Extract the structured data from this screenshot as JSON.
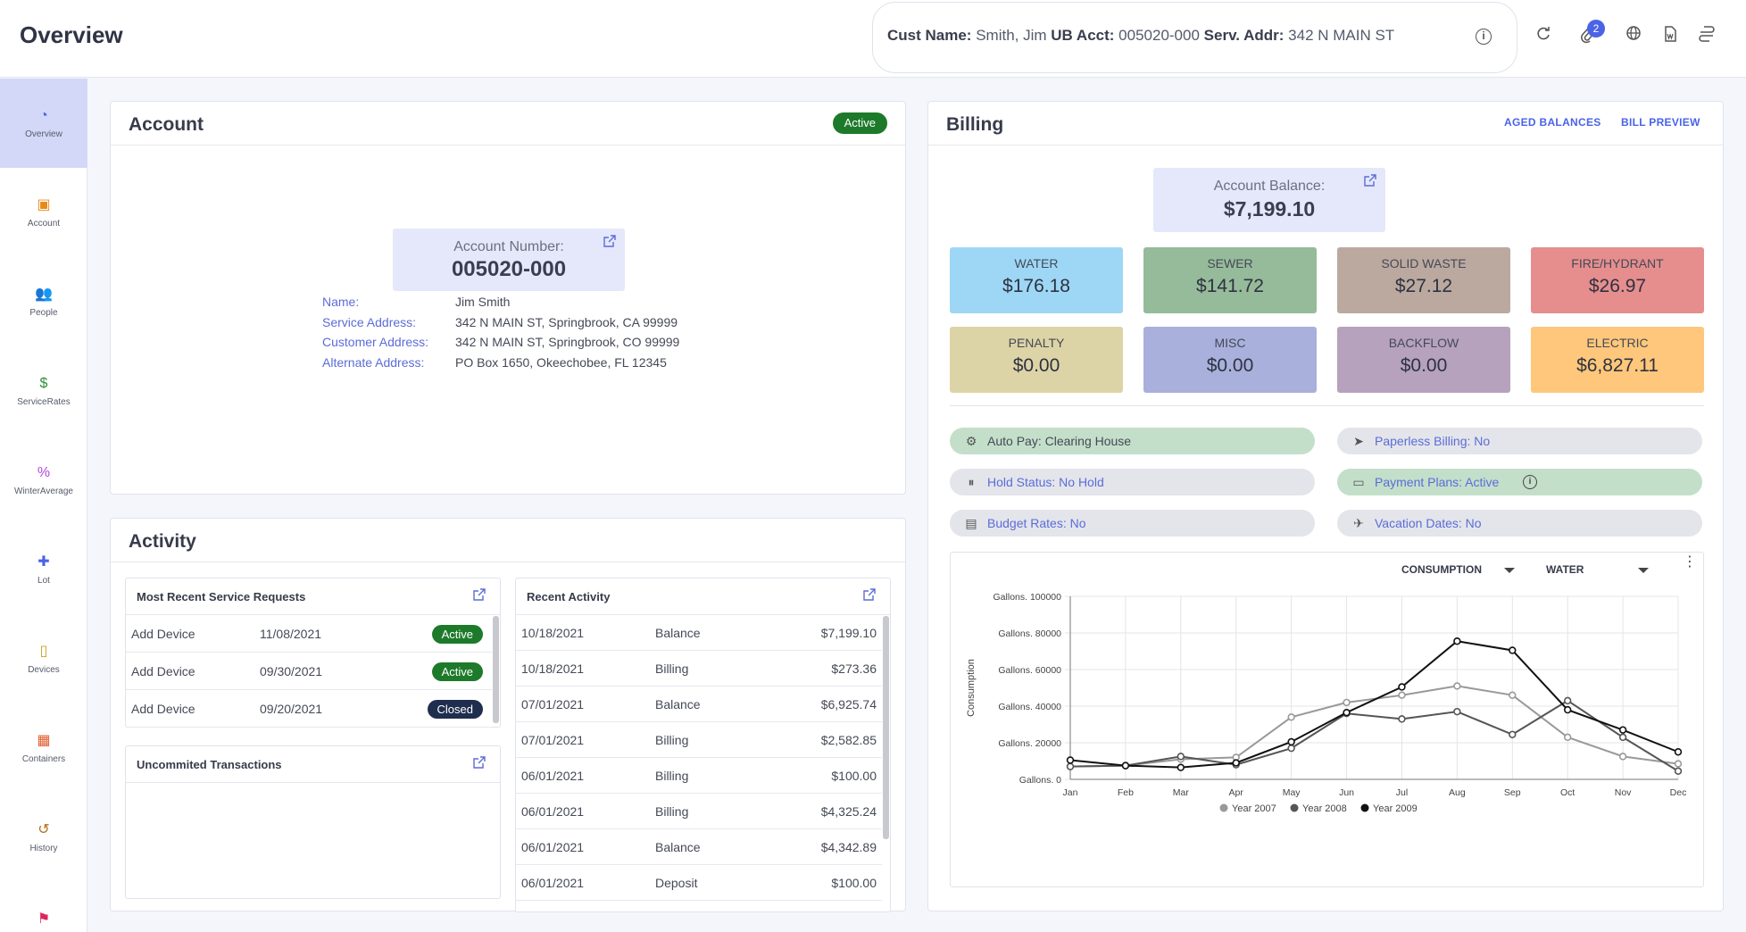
{
  "header": {
    "title": "Overview",
    "customer": {
      "name_label": "Cust Name:",
      "name": "Smith, Jim",
      "acct_label": "UB Acct:",
      "acct": "005020-000",
      "addr_label": "Serv. Addr:",
      "addr": "342 N MAIN ST"
    },
    "attachments_badge": "2",
    "icons": [
      "refresh-icon",
      "paperclip-icon",
      "globe-icon",
      "document-icon",
      "exchange-icon"
    ]
  },
  "sidebar": {
    "items": [
      {
        "label": "Overview",
        "icon": "pie-chart-icon",
        "color": "#4a63e7",
        "active": true
      },
      {
        "label": "Account",
        "icon": "account-icon",
        "color": "#e8891a",
        "active": false
      },
      {
        "label": "People",
        "icon": "people-icon",
        "color": "#2a8fd4",
        "active": false
      },
      {
        "label": "ServiceRates",
        "icon": "dollar-icon",
        "color": "#2e8b3a",
        "active": false
      },
      {
        "label": "WinterAverage",
        "icon": "percent-icon",
        "color": "#b04ad8",
        "active": false
      },
      {
        "label": "Lot",
        "icon": "puzzle-icon",
        "color": "#4a63e7",
        "active": false
      },
      {
        "label": "Devices",
        "icon": "device-icon",
        "color": "#c9a21a",
        "active": false
      },
      {
        "label": "Containers",
        "icon": "calendar-icon",
        "color": "#e05a2a",
        "active": false
      },
      {
        "label": "History",
        "icon": "history-icon",
        "color": "#b6711e",
        "active": false
      },
      {
        "label": "",
        "icon": "flag-icon",
        "color": "#e0245e",
        "active": false
      }
    ]
  },
  "account": {
    "title": "Account",
    "status": "Active",
    "number_label": "Account Number:",
    "number": "005020-000",
    "fields": [
      {
        "label": "Name:",
        "value": "Jim Smith"
      },
      {
        "label": "Service Address:",
        "value": "342 N MAIN ST, Springbrook, CA 99999"
      },
      {
        "label": "Customer Address:",
        "value": "342 N MAIN ST, Springbrook, CO 99999"
      },
      {
        "label": "Alternate Address:",
        "value": "PO Box 1650, Okeechobee, FL 12345"
      }
    ]
  },
  "activity": {
    "title": "Activity",
    "service_requests": {
      "title": "Most Recent Service Requests",
      "rows": [
        {
          "type": "Add Device",
          "date": "11/08/2021",
          "status": "Active",
          "color": "#1d7a2a"
        },
        {
          "type": "Add Device",
          "date": "09/30/2021",
          "status": "Active",
          "color": "#1d7a2a"
        },
        {
          "type": "Add Device",
          "date": "09/20/2021",
          "status": "Closed",
          "color": "#1f2d4e"
        }
      ]
    },
    "uncommitted": {
      "title": "Uncommited Transactions"
    },
    "recent": {
      "title": "Recent Activity",
      "rows": [
        {
          "date": "10/18/2021",
          "type": "Balance",
          "amount": "$7,199.10"
        },
        {
          "date": "10/18/2021",
          "type": "Billing",
          "amount": "$273.36"
        },
        {
          "date": "07/01/2021",
          "type": "Balance",
          "amount": "$6,925.74"
        },
        {
          "date": "07/01/2021",
          "type": "Billing",
          "amount": "$2,582.85"
        },
        {
          "date": "06/01/2021",
          "type": "Billing",
          "amount": "$100.00"
        },
        {
          "date": "06/01/2021",
          "type": "Billing",
          "amount": "$4,325.24"
        },
        {
          "date": "06/01/2021",
          "type": "Balance",
          "amount": "$4,342.89"
        },
        {
          "date": "06/01/2021",
          "type": "Deposit",
          "amount": "$100.00"
        }
      ]
    }
  },
  "billing": {
    "title": "Billing",
    "links": {
      "aged": "AGED BALANCES",
      "preview": "BILL PREVIEW"
    },
    "balance_label": "Account Balance:",
    "balance": "$7,199.10",
    "tiles": [
      {
        "label": "WATER",
        "value": "$176.18",
        "color": "#9dd7f5"
      },
      {
        "label": "SEWER",
        "value": "$141.72",
        "color": "#96bb9a"
      },
      {
        "label": "SOLID WASTE",
        "value": "$27.12",
        "color": "#bba9a0"
      },
      {
        "label": "FIRE/HYDRANT",
        "value": "$26.97",
        "color": "#e68e8e"
      },
      {
        "label": "PENALTY",
        "value": "$0.00",
        "color": "#dcd4a6"
      },
      {
        "label": "MISC",
        "value": "$0.00",
        "color": "#a9b0dc"
      },
      {
        "label": "BACKFLOW",
        "value": "$0.00",
        "color": "#b6a2bd"
      },
      {
        "label": "ELECTRIC",
        "value": "$6,827.11",
        "color": "#fec77b"
      }
    ],
    "flags": [
      {
        "text": "Auto Pay: Clearing House",
        "icon": "robot-icon",
        "green": true,
        "dark": true
      },
      {
        "text": "Paperless Billing: No",
        "icon": "paper-plane-icon",
        "green": false,
        "dark": false
      },
      {
        "text": "Hold Status: No Hold",
        "icon": "pause-icon",
        "green": false,
        "dark": false
      },
      {
        "text": "Payment Plans: Active",
        "icon": "credit-card-icon",
        "green": true,
        "dark": false,
        "info": true
      },
      {
        "text": "Budget Rates: No",
        "icon": "budget-icon",
        "green": false,
        "dark": false
      },
      {
        "text": "Vacation Dates: No",
        "icon": "plane-icon",
        "green": false,
        "dark": false
      }
    ],
    "chart_controls": {
      "metric": "CONSUMPTION",
      "service": "WATER"
    }
  },
  "chart_data": {
    "type": "line",
    "x": [
      "Jan",
      "Feb",
      "Mar",
      "Apr",
      "May",
      "Jun",
      "Jul",
      "Aug",
      "Sep",
      "Oct",
      "Nov",
      "Dec"
    ],
    "ylabel": "Consumption",
    "ylim": [
      0,
      100000
    ],
    "yticks": [
      {
        "value": 0,
        "label": "Gallons. 0"
      },
      {
        "value": 20000,
        "label": "Gallons. 20000"
      },
      {
        "value": 40000,
        "label": "Gallons. 40000"
      },
      {
        "value": 60000,
        "label": "Gallons. 60000"
      },
      {
        "value": 80000,
        "label": "Gallons. 80000"
      },
      {
        "value": 100000,
        "label": "Gallons. 100000"
      }
    ],
    "grid": true,
    "legend": "bottom",
    "series": [
      {
        "name": "Year 2007",
        "color": "#999999",
        "values": [
          7000,
          7500,
          11000,
          12000,
          34000,
          42000,
          46000,
          51000,
          46000,
          23000,
          12500,
          8500
        ]
      },
      {
        "name": "Year 2008",
        "color": "#555555",
        "values": [
          7000,
          7500,
          12500,
          8000,
          17000,
          36000,
          33000,
          37000,
          24500,
          43000,
          23000,
          4500
        ]
      },
      {
        "name": "Year 2009",
        "color": "#111111",
        "values": [
          10500,
          7500,
          6500,
          9000,
          20500,
          36500,
          50500,
          75500,
          70500,
          38000,
          27000,
          15000
        ]
      }
    ]
  }
}
